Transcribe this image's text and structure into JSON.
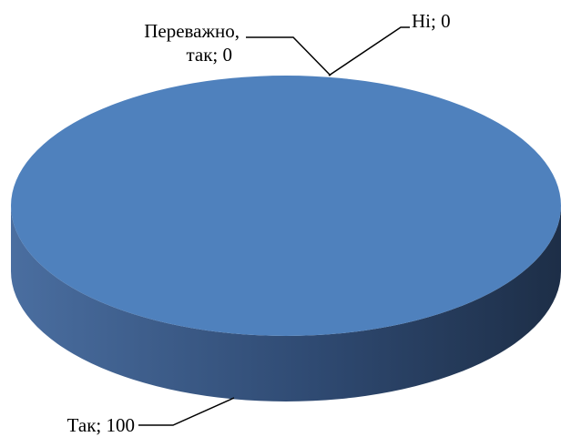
{
  "chart_data": {
    "type": "pie",
    "style": "3d",
    "categories": [
      "Так",
      "Переважно, так",
      "Ні"
    ],
    "values": [
      100,
      0,
      0
    ],
    "labels": [
      {
        "category_lines": [
          "Так; 100"
        ]
      },
      {
        "category_lines": [
          "Переважно,",
          "так; 0"
        ]
      },
      {
        "category_lines": [
          "Ні; 0"
        ]
      }
    ],
    "colors": {
      "top": "#4F81BD",
      "side_light": "#4A6EA0",
      "side_dark": "#1D2E47"
    },
    "legend": "none"
  }
}
